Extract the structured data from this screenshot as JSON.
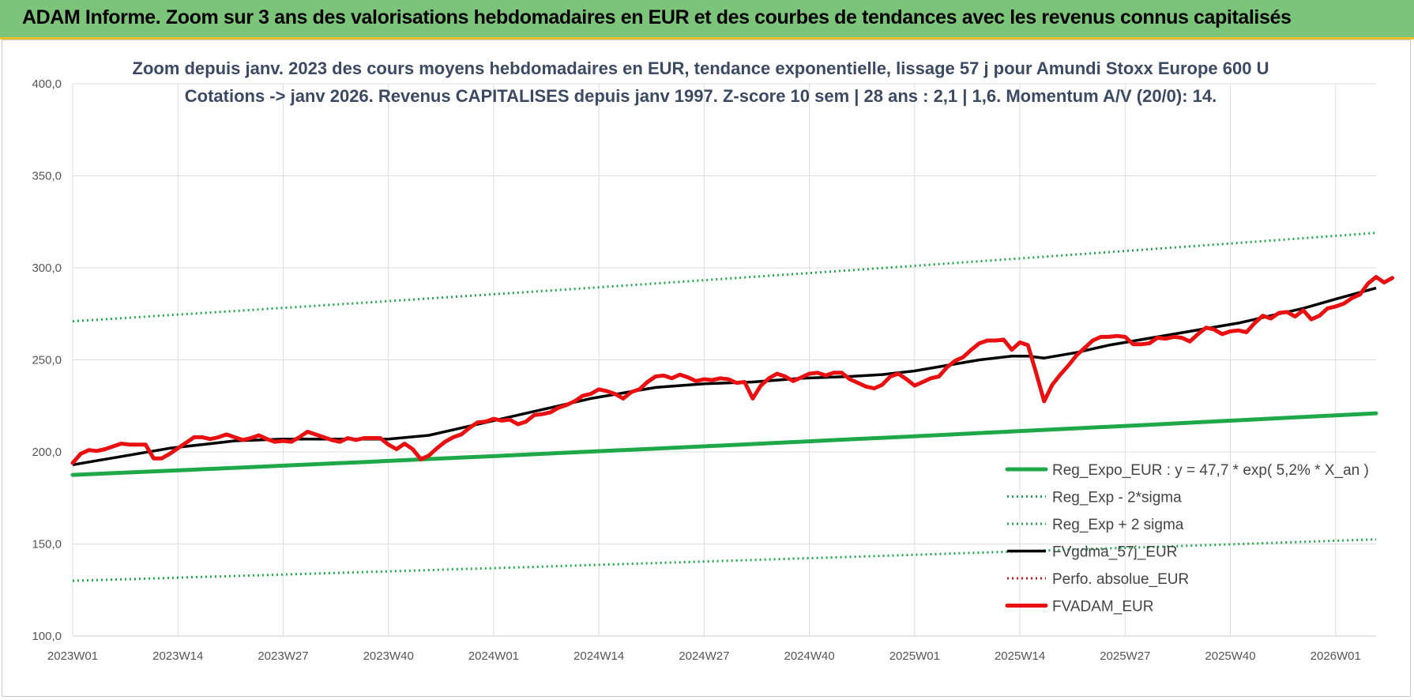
{
  "banner": {
    "title": "ADAM Informe. Zoom sur 3 ans des valorisations hebdomadaires en EUR et des courbes de tendances avec les revenus connus capitalisés",
    "background": "#7cc47a"
  },
  "chart_data": {
    "type": "line",
    "title_lines": [
      "Zoom depuis janv. 2023 des cours moyens hebdomadaires en EUR, tendance exponentielle, lissage 57 j pour Amundi Stoxx Europe 600 U",
      "Cotations -> janv 2026. Revenus CAPITALISES depuis janv 1997. Z-score 10 sem | 28 ans : 2,1 | 1,6. Momentum A/V (20/0): 14."
    ],
    "ylim": [
      100,
      400
    ],
    "y_ticks": [
      "400,0",
      "350,0",
      "300,0",
      "250,0",
      "200,0",
      "150,0",
      "100,0"
    ],
    "y_tick_values": [
      400,
      350,
      300,
      250,
      200,
      150,
      100
    ],
    "x_tick_labels": [
      "2023W01",
      "2023W14",
      "2023W27",
      "2023W40",
      "2024W01",
      "2024W14",
      "2024W27",
      "2024W40",
      "2025W01",
      "2025W14",
      "2025W27",
      "2025W40",
      "2026W01"
    ],
    "x_tick_weeks": [
      0,
      13,
      26,
      39,
      52,
      65,
      78,
      91,
      104,
      117,
      130,
      143,
      156
    ],
    "x_range_weeks": [
      0,
      161
    ],
    "grid": true,
    "legend_position": "bottom-right",
    "series": [
      {
        "name": "Reg_Expo_EUR : y = 47,7 * exp( 5,2% *  X_an )",
        "color": "#1fa84a",
        "style": "solid-thick",
        "points": [
          [
            0,
            187.5
          ],
          [
            161,
            221
          ]
        ]
      },
      {
        "name": "Reg_Exp - 2*sigma",
        "color": "#1fa84a",
        "style": "dotted",
        "points": [
          [
            0,
            130
          ],
          [
            161,
            152.5
          ]
        ]
      },
      {
        "name": "Reg_Exp + 2 sigma",
        "color": "#1fa84a",
        "style": "dotted",
        "points": [
          [
            0,
            271
          ],
          [
            161,
            319
          ]
        ]
      },
      {
        "name": "FVgdma_57j_EUR",
        "color": "#000000",
        "style": "solid",
        "points": [
          [
            0,
            193
          ],
          [
            4,
            196
          ],
          [
            8,
            199
          ],
          [
            12,
            202
          ],
          [
            16,
            204
          ],
          [
            20,
            206
          ],
          [
            26,
            207
          ],
          [
            32,
            207
          ],
          [
            39,
            207
          ],
          [
            44,
            209
          ],
          [
            48,
            213
          ],
          [
            52,
            217
          ],
          [
            56,
            221
          ],
          [
            60,
            225
          ],
          [
            64,
            229
          ],
          [
            68,
            232
          ],
          [
            72,
            235
          ],
          [
            78,
            237
          ],
          [
            84,
            238
          ],
          [
            90,
            240
          ],
          [
            96,
            241
          ],
          [
            100,
            242
          ],
          [
            104,
            244
          ],
          [
            108,
            247
          ],
          [
            112,
            250
          ],
          [
            116,
            252
          ],
          [
            118,
            252
          ],
          [
            120,
            251
          ],
          [
            124,
            254
          ],
          [
            128,
            258
          ],
          [
            132,
            261
          ],
          [
            136,
            264
          ],
          [
            140,
            267
          ],
          [
            144,
            270
          ],
          [
            148,
            274
          ],
          [
            152,
            278
          ],
          [
            156,
            283
          ],
          [
            161,
            289
          ]
        ]
      },
      {
        "name": "Perfo. absolue_EUR",
        "color": "#e01010",
        "style": "dotted",
        "points": []
      },
      {
        "name": "FVADAM_EUR",
        "color": "#e81010",
        "style": "solid-thick",
        "points": [
          [
            0,
            194
          ],
          [
            1,
            199
          ],
          [
            2,
            201
          ],
          [
            3,
            200.5
          ],
          [
            4,
            201.5
          ],
          [
            5,
            203
          ],
          [
            6,
            204.5
          ],
          [
            7,
            204
          ],
          [
            8,
            204
          ],
          [
            9,
            204
          ],
          [
            10,
            196.5
          ],
          [
            11,
            196.5
          ],
          [
            12,
            199
          ],
          [
            13,
            202
          ],
          [
            14,
            205
          ],
          [
            15,
            208
          ],
          [
            16,
            208
          ],
          [
            17,
            207
          ],
          [
            18,
            208
          ],
          [
            19,
            209.5
          ],
          [
            20,
            208
          ],
          [
            21,
            206.5
          ],
          [
            22,
            207.5
          ],
          [
            23,
            209
          ],
          [
            24,
            207
          ],
          [
            25,
            205.5
          ],
          [
            26,
            206
          ],
          [
            27,
            205.5
          ],
          [
            28,
            208
          ],
          [
            29,
            211
          ],
          [
            30,
            209.5
          ],
          [
            31,
            208
          ],
          [
            32,
            206.5
          ],
          [
            33,
            205.5
          ],
          [
            34,
            207.5
          ],
          [
            35,
            206.5
          ],
          [
            36,
            207.5
          ],
          [
            37,
            207.5
          ],
          [
            38,
            207.5
          ],
          [
            39,
            204
          ],
          [
            40,
            201.5
          ],
          [
            41,
            204.5
          ],
          [
            42,
            201.5
          ],
          [
            43,
            196
          ],
          [
            44,
            198
          ],
          [
            45,
            202
          ],
          [
            46,
            205.5
          ],
          [
            47,
            208
          ],
          [
            48,
            209.5
          ],
          [
            49,
            213
          ],
          [
            50,
            216
          ],
          [
            51,
            216.5
          ],
          [
            52,
            218
          ],
          [
            53,
            217
          ],
          [
            54,
            217.5
          ],
          [
            55,
            215
          ],
          [
            56,
            216.5
          ],
          [
            57,
            220
          ],
          [
            58,
            220.5
          ],
          [
            59,
            221.5
          ],
          [
            60,
            224
          ],
          [
            61,
            225.5
          ],
          [
            62,
            227.5
          ],
          [
            63,
            230.5
          ],
          [
            64,
            231.5
          ],
          [
            65,
            234
          ],
          [
            66,
            233
          ],
          [
            67,
            231.5
          ],
          [
            68,
            229
          ],
          [
            69,
            232.5
          ],
          [
            70,
            234
          ],
          [
            71,
            238
          ],
          [
            72,
            241
          ],
          [
            73,
            241.5
          ],
          [
            74,
            240
          ],
          [
            75,
            242
          ],
          [
            76,
            240.5
          ],
          [
            77,
            238.5
          ],
          [
            78,
            239.5
          ],
          [
            79,
            239
          ],
          [
            80,
            240
          ],
          [
            81,
            239.5
          ],
          [
            82,
            237.5
          ],
          [
            83,
            238
          ],
          [
            84,
            229
          ],
          [
            85,
            236
          ],
          [
            86,
            240
          ],
          [
            87,
            242.5
          ],
          [
            88,
            241
          ],
          [
            89,
            238.5
          ],
          [
            90,
            240.5
          ],
          [
            91,
            242.5
          ],
          [
            92,
            243
          ],
          [
            93,
            241.5
          ],
          [
            94,
            243
          ],
          [
            95,
            243
          ],
          [
            96,
            239.5
          ],
          [
            97,
            237.5
          ],
          [
            98,
            235.5
          ],
          [
            99,
            234.5
          ],
          [
            100,
            236.5
          ],
          [
            101,
            241
          ],
          [
            102,
            242.5
          ],
          [
            103,
            239.5
          ],
          [
            104,
            236
          ],
          [
            105,
            238
          ],
          [
            106,
            240
          ],
          [
            107,
            241
          ],
          [
            108,
            246
          ],
          [
            109,
            249.5
          ],
          [
            110,
            251.5
          ],
          [
            111,
            255.5
          ],
          [
            112,
            259
          ],
          [
            113,
            260.5
          ],
          [
            114,
            260.5
          ],
          [
            115,
            261
          ],
          [
            116,
            255.5
          ],
          [
            117,
            259.5
          ],
          [
            118,
            258
          ],
          [
            119,
            243
          ],
          [
            120,
            227.5
          ],
          [
            121,
            236.5
          ],
          [
            122,
            242
          ],
          [
            123,
            247
          ],
          [
            124,
            252.5
          ],
          [
            125,
            256.5
          ],
          [
            126,
            260.5
          ],
          [
            127,
            262.5
          ],
          [
            128,
            262.5
          ],
          [
            129,
            263
          ],
          [
            130,
            262.5
          ],
          [
            131,
            258.5
          ],
          [
            132,
            258.5
          ],
          [
            133,
            259
          ],
          [
            134,
            262
          ],
          [
            135,
            261.5
          ],
          [
            136,
            262.5
          ],
          [
            137,
            262
          ],
          [
            138,
            260
          ],
          [
            139,
            264
          ],
          [
            140,
            267.5
          ],
          [
            141,
            266.5
          ],
          [
            142,
            264
          ],
          [
            143,
            265.5
          ],
          [
            144,
            266
          ],
          [
            145,
            265
          ],
          [
            146,
            270
          ],
          [
            147,
            274
          ],
          [
            148,
            272.5
          ],
          [
            149,
            275.5
          ],
          [
            150,
            276
          ],
          [
            151,
            273.5
          ],
          [
            152,
            277
          ],
          [
            153,
            272
          ],
          [
            154,
            274
          ],
          [
            155,
            278
          ],
          [
            156,
            279
          ],
          [
            157,
            280.5
          ],
          [
            158,
            283.5
          ],
          [
            159,
            285.5
          ],
          [
            160,
            291.5
          ],
          [
            161,
            295
          ],
          [
            162,
            292
          ],
          [
            163,
            294.5
          ]
        ]
      }
    ]
  }
}
